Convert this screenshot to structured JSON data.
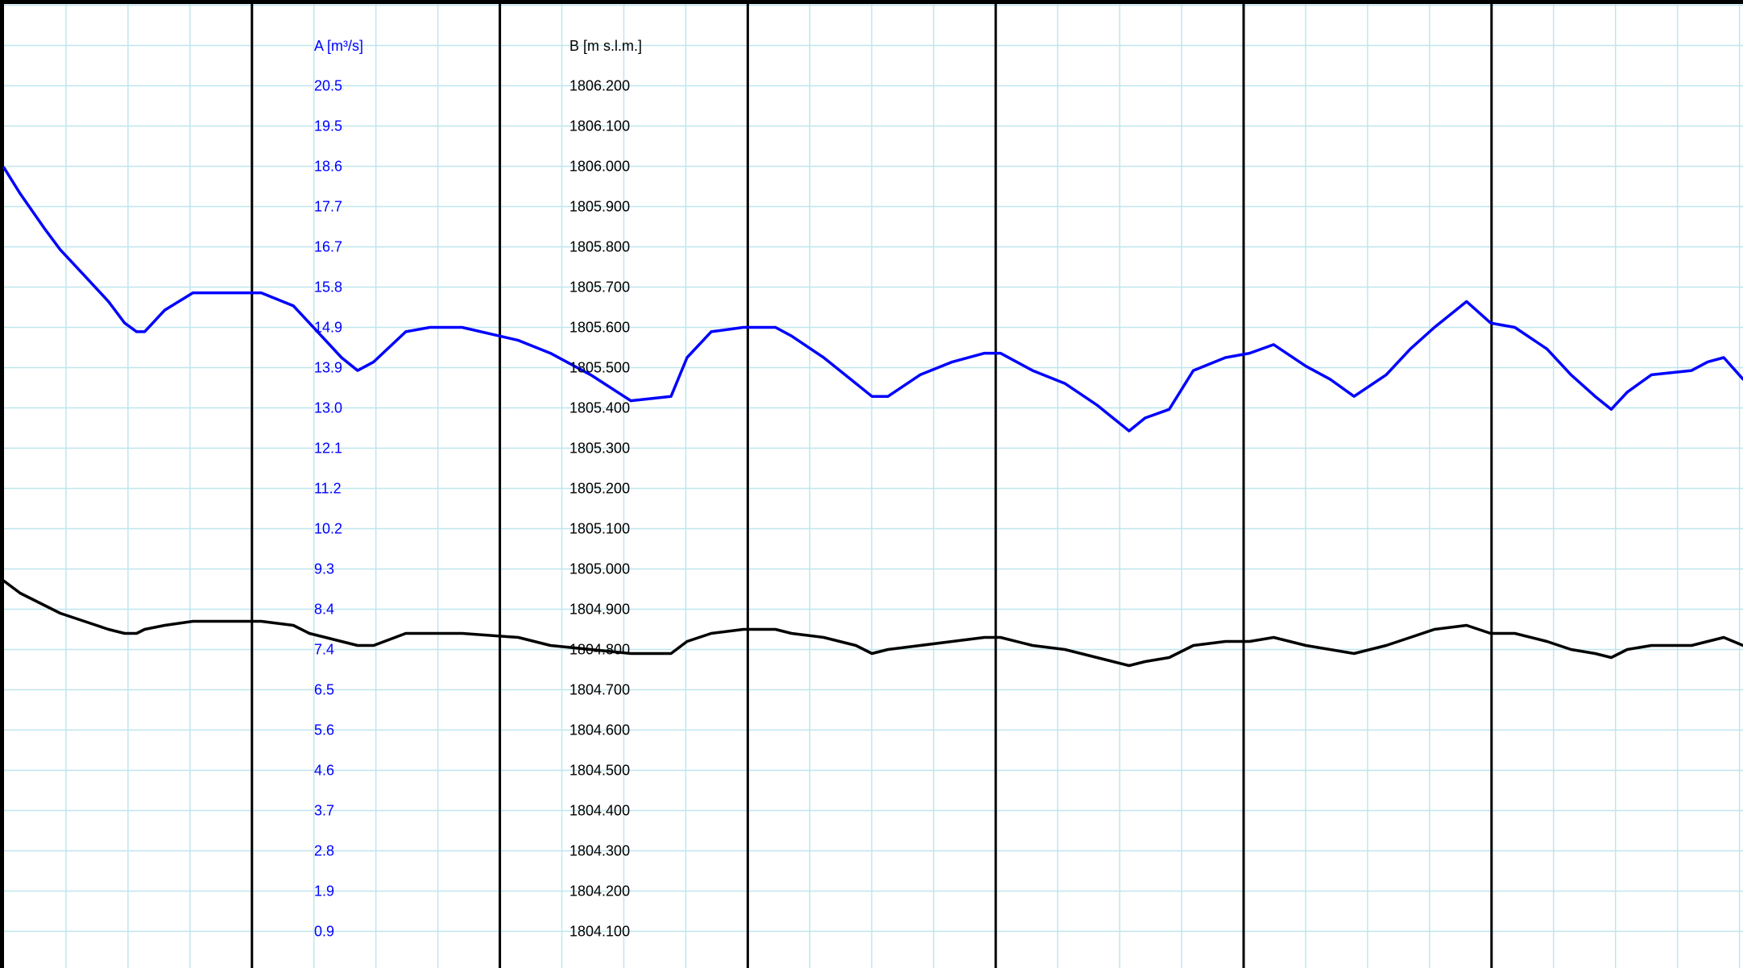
{
  "chart_data": {
    "type": "line",
    "grid": true,
    "axes": {
      "A": {
        "label": "A [m³/s]",
        "color": "#0000ff",
        "ticks": [
          "20.5",
          "19.5",
          "18.6",
          "17.7",
          "16.7",
          "15.8",
          "14.9",
          "13.9",
          "13.0",
          "12.1",
          "11.2",
          "10.2",
          "9.3",
          "8.4",
          "7.4",
          "6.5",
          "5.6",
          "4.6",
          "3.7",
          "2.8",
          "1.9",
          "0.9"
        ],
        "range": [
          0.0,
          21.4
        ]
      },
      "B": {
        "label": "B [m s.l.m.]",
        "color": "#000000",
        "ticks": [
          "1806.200",
          "1806.100",
          "1806.000",
          "1805.900",
          "1805.800",
          "1805.700",
          "1805.600",
          "1805.500",
          "1805.400",
          "1805.300",
          "1805.200",
          "1805.100",
          "1805.000",
          "1804.900",
          "1804.800",
          "1804.700",
          "1804.600",
          "1804.500",
          "1804.400",
          "1804.300",
          "1804.200",
          "1804.100"
        ],
        "range": [
          1804.0,
          1806.3
        ]
      }
    },
    "x_range": [
      0,
      2164
    ],
    "major_divisions": 7,
    "minor_per_major": 4,
    "series": [
      {
        "axis": "A",
        "color": "#0000ff",
        "x": [
          0,
          20,
          50,
          70,
          100,
          130,
          150,
          165,
          175,
          200,
          235,
          280,
          320,
          360,
          380,
          400,
          420,
          440,
          460,
          500,
          530,
          570,
          640,
          680,
          730,
          780,
          830,
          850,
          880,
          920,
          960,
          980,
          1020,
          1060,
          1080,
          1100,
          1140,
          1180,
          1220,
          1240,
          1280,
          1320,
          1360,
          1380,
          1400,
          1420,
          1450,
          1480,
          1520,
          1550,
          1580,
          1620,
          1650,
          1680,
          1720,
          1750,
          1780,
          1820,
          1850,
          1880,
          1920,
          1950,
          1980,
          2000,
          2020,
          2050,
          2100,
          2120,
          2140,
          2164
        ],
        "y": [
          18.6,
          18.0,
          17.2,
          16.7,
          16.1,
          15.5,
          15.0,
          14.8,
          14.8,
          15.3,
          15.7,
          15.7,
          15.7,
          15.4,
          15.0,
          14.6,
          14.2,
          13.9,
          14.1,
          14.8,
          14.9,
          14.9,
          14.6,
          14.3,
          13.8,
          13.2,
          13.3,
          14.2,
          14.8,
          14.9,
          14.9,
          14.7,
          14.2,
          13.6,
          13.3,
          13.3,
          13.8,
          14.1,
          14.3,
          14.3,
          13.9,
          13.6,
          13.1,
          12.8,
          12.5,
          12.8,
          13.0,
          13.9,
          14.2,
          14.3,
          14.5,
          14.0,
          13.7,
          13.3,
          13.8,
          14.4,
          14.9,
          15.5,
          15.0,
          14.9,
          14.4,
          13.8,
          13.3,
          13.0,
          13.4,
          13.8,
          13.9,
          14.1,
          14.2,
          13.7
        ]
      },
      {
        "axis": "B",
        "color": "#000000",
        "x": [
          0,
          20,
          50,
          70,
          100,
          130,
          150,
          165,
          175,
          200,
          235,
          280,
          320,
          360,
          380,
          400,
          420,
          440,
          460,
          500,
          530,
          570,
          640,
          680,
          730,
          780,
          830,
          850,
          880,
          920,
          960,
          980,
          1020,
          1060,
          1080,
          1100,
          1140,
          1180,
          1220,
          1240,
          1280,
          1320,
          1360,
          1380,
          1400,
          1420,
          1450,
          1480,
          1520,
          1550,
          1580,
          1620,
          1650,
          1680,
          1720,
          1750,
          1780,
          1820,
          1850,
          1880,
          1920,
          1950,
          1980,
          2000,
          2020,
          2050,
          2100,
          2120,
          2140,
          2164
        ],
        "y": [
          1804.97,
          1804.94,
          1804.91,
          1804.89,
          1804.87,
          1804.85,
          1804.84,
          1804.84,
          1804.85,
          1804.86,
          1804.87,
          1804.87,
          1804.87,
          1804.86,
          1804.84,
          1804.83,
          1804.82,
          1804.81,
          1804.81,
          1804.84,
          1804.84,
          1804.84,
          1804.83,
          1804.81,
          1804.8,
          1804.79,
          1804.79,
          1804.82,
          1804.84,
          1804.85,
          1804.85,
          1804.84,
          1804.83,
          1804.81,
          1804.79,
          1804.8,
          1804.81,
          1804.82,
          1804.83,
          1804.83,
          1804.81,
          1804.8,
          1804.78,
          1804.77,
          1804.76,
          1804.77,
          1804.78,
          1804.81,
          1804.82,
          1804.82,
          1804.83,
          1804.81,
          1804.8,
          1804.79,
          1804.81,
          1804.83,
          1804.85,
          1804.86,
          1804.84,
          1804.84,
          1804.82,
          1804.8,
          1804.79,
          1804.78,
          1804.8,
          1804.81,
          1804.81,
          1804.82,
          1804.83,
          1804.81
        ]
      }
    ]
  }
}
